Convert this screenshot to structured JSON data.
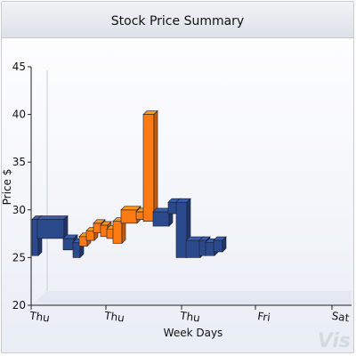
{
  "chart_data": {
    "type": "bar",
    "title": "Stock Price Summary",
    "xlabel": "Week Days",
    "ylabel": "Price $",
    "ylim": [
      20,
      45
    ],
    "yticks": [
      "20",
      "25",
      "30",
      "35",
      "40",
      "45"
    ],
    "xticks": [
      "Thu",
      "Thu",
      "Thu",
      "Fri",
      "Sat"
    ],
    "grid": false,
    "legend": "none",
    "style": "3d-waterfall",
    "colors": {
      "down": "#2b4a8b",
      "up": "#ff7a12"
    },
    "segments": [
      {
        "from": 25.2,
        "to": 29.0,
        "dir": "down"
      },
      {
        "from": 29.0,
        "to": 27.0,
        "dir": "down"
      },
      {
        "from": 27.0,
        "to": 25.8,
        "dir": "down"
      },
      {
        "from": 25.0,
        "to": 26.6,
        "dir": "down"
      },
      {
        "from": 26.2,
        "to": 27.2,
        "dir": "up"
      },
      {
        "from": 26.8,
        "to": 27.8,
        "dir": "up"
      },
      {
        "from": 27.6,
        "to": 28.6,
        "dir": "up"
      },
      {
        "from": 27.2,
        "to": 28.4,
        "dir": "up"
      },
      {
        "from": 27.0,
        "to": 28.0,
        "dir": "up"
      },
      {
        "from": 26.5,
        "to": 28.8,
        "dir": "up"
      },
      {
        "from": 28.6,
        "to": 30.0,
        "dir": "up"
      },
      {
        "from": 29.0,
        "to": 29.8,
        "dir": "up"
      },
      {
        "from": 28.8,
        "to": 40.0,
        "dir": "up"
      },
      {
        "from": 29.8,
        "to": 28.3,
        "dir": "down"
      },
      {
        "from": 29.6,
        "to": 30.8,
        "dir": "down"
      },
      {
        "from": 30.8,
        "to": 25.0,
        "dir": "down"
      },
      {
        "from": 25.0,
        "to": 26.8,
        "dir": "down"
      },
      {
        "from": 26.8,
        "to": 25.2,
        "dir": "down"
      },
      {
        "from": 25.2,
        "to": 26.6,
        "dir": "down"
      },
      {
        "from": 25.6,
        "to": 26.8,
        "dir": "down"
      }
    ]
  },
  "watermark": "Vis"
}
